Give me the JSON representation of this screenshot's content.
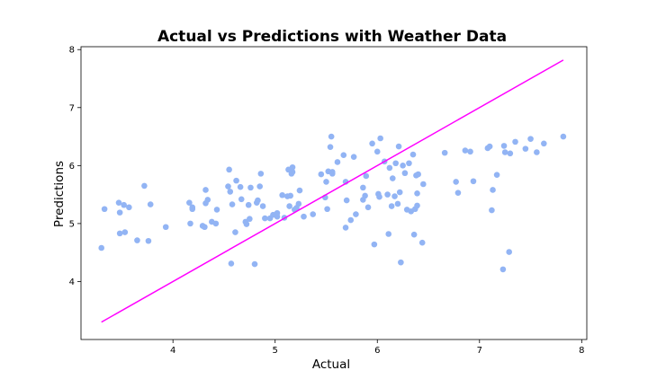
{
  "chart_data": {
    "type": "scatter",
    "title": "Actual vs Predictions with Weather Data",
    "xlabel": "Actual",
    "ylabel": "Predictions",
    "xlim": [
      3.1,
      8.05
    ],
    "ylim": [
      3.0,
      8.05
    ],
    "xticks": [
      4,
      5,
      6,
      7,
      8
    ],
    "yticks": [
      4,
      5,
      6,
      7,
      8
    ],
    "grid": false,
    "legend": "none",
    "colors": {
      "points": "#92b4f4",
      "reference_line": "#ff00ff"
    },
    "reference_line": {
      "x": [
        3.3,
        7.82
      ],
      "y": [
        3.3,
        7.82
      ]
    },
    "points": [
      [
        3.3,
        4.58
      ],
      [
        3.33,
        5.25
      ],
      [
        3.47,
        5.36
      ],
      [
        3.48,
        4.83
      ],
      [
        3.48,
        5.19
      ],
      [
        3.52,
        5.32
      ],
      [
        3.53,
        4.85
      ],
      [
        3.57,
        5.28
      ],
      [
        3.65,
        4.71
      ],
      [
        3.72,
        5.65
      ],
      [
        3.76,
        4.7
      ],
      [
        3.78,
        5.33
      ],
      [
        3.93,
        4.94
      ],
      [
        4.16,
        5.36
      ],
      [
        4.17,
        5.0
      ],
      [
        4.19,
        5.28
      ],
      [
        4.19,
        5.25
      ],
      [
        4.29,
        4.96
      ],
      [
        4.31,
        4.94
      ],
      [
        4.32,
        5.58
      ],
      [
        4.32,
        5.35
      ],
      [
        4.34,
        5.41
      ],
      [
        4.38,
        5.03
      ],
      [
        4.42,
        5.0
      ],
      [
        4.43,
        5.24
      ],
      [
        4.54,
        5.64
      ],
      [
        4.55,
        5.93
      ],
      [
        4.56,
        5.55
      ],
      [
        4.57,
        4.31
      ],
      [
        4.58,
        5.33
      ],
      [
        4.61,
        4.85
      ],
      [
        4.62,
        5.74
      ],
      [
        4.66,
        5.63
      ],
      [
        4.67,
        5.42
      ],
      [
        4.71,
        5.03
      ],
      [
        4.72,
        4.99
      ],
      [
        4.74,
        5.32
      ],
      [
        4.76,
        5.62
      ],
      [
        4.75,
        5.08
      ],
      [
        4.8,
        4.3
      ],
      [
        4.82,
        5.36
      ],
      [
        4.83,
        5.4
      ],
      [
        4.85,
        5.64
      ],
      [
        4.86,
        5.86
      ],
      [
        4.88,
        5.3
      ],
      [
        4.9,
        5.09
      ],
      [
        4.95,
        5.09
      ],
      [
        4.98,
        5.15
      ],
      [
        5.02,
        5.12
      ],
      [
        5.02,
        5.18
      ],
      [
        5.07,
        5.49
      ],
      [
        5.09,
        5.1
      ],
      [
        5.12,
        5.47
      ],
      [
        5.13,
        5.93
      ],
      [
        5.14,
        5.3
      ],
      [
        5.15,
        5.48
      ],
      [
        5.16,
        5.86
      ],
      [
        5.17,
        5.97
      ],
      [
        5.17,
        5.89
      ],
      [
        5.19,
        5.24
      ],
      [
        5.21,
        5.27
      ],
      [
        5.23,
        5.34
      ],
      [
        5.24,
        5.57
      ],
      [
        5.28,
        5.12
      ],
      [
        5.37,
        5.16
      ],
      [
        5.45,
        5.85
      ],
      [
        5.49,
        5.45
      ],
      [
        5.5,
        5.72
      ],
      [
        5.51,
        5.25
      ],
      [
        5.52,
        5.9
      ],
      [
        5.54,
        6.32
      ],
      [
        5.55,
        6.5
      ],
      [
        5.56,
        5.86
      ],
      [
        5.56,
        5.89
      ],
      [
        5.61,
        6.06
      ],
      [
        5.67,
        6.18
      ],
      [
        5.69,
        5.72
      ],
      [
        5.69,
        4.93
      ],
      [
        5.7,
        5.4
      ],
      [
        5.74,
        5.06
      ],
      [
        5.77,
        6.15
      ],
      [
        5.79,
        5.16
      ],
      [
        5.86,
        5.41
      ],
      [
        5.86,
        5.62
      ],
      [
        5.88,
        5.48
      ],
      [
        5.89,
        5.82
      ],
      [
        5.91,
        5.28
      ],
      [
        5.95,
        6.38
      ],
      [
        5.97,
        4.64
      ],
      [
        6.0,
        6.24
      ],
      [
        6.01,
        5.51
      ],
      [
        6.02,
        5.46
      ],
      [
        6.03,
        6.47
      ],
      [
        6.07,
        6.07
      ],
      [
        6.1,
        5.5
      ],
      [
        6.11,
        4.82
      ],
      [
        6.12,
        5.96
      ],
      [
        6.14,
        5.3
      ],
      [
        6.15,
        5.78
      ],
      [
        6.17,
        5.47
      ],
      [
        6.18,
        6.04
      ],
      [
        6.2,
        5.34
      ],
      [
        6.21,
        6.33
      ],
      [
        6.22,
        5.54
      ],
      [
        6.23,
        4.33
      ],
      [
        6.25,
        6.0
      ],
      [
        6.27,
        5.87
      ],
      [
        6.29,
        5.24
      ],
      [
        6.31,
        6.04
      ],
      [
        6.33,
        5.21
      ],
      [
        6.35,
        6.19
      ],
      [
        6.36,
        4.81
      ],
      [
        6.37,
        5.25
      ],
      [
        6.38,
        5.83
      ],
      [
        6.39,
        5.52
      ],
      [
        6.39,
        5.31
      ],
      [
        6.4,
        5.85
      ],
      [
        6.44,
        4.67
      ],
      [
        6.45,
        5.68
      ],
      [
        6.66,
        6.22
      ],
      [
        6.77,
        5.72
      ],
      [
        6.79,
        5.53
      ],
      [
        6.86,
        6.26
      ],
      [
        6.91,
        6.24
      ],
      [
        6.94,
        5.73
      ],
      [
        7.08,
        6.3
      ],
      [
        7.1,
        6.33
      ],
      [
        7.12,
        5.23
      ],
      [
        7.13,
        5.58
      ],
      [
        7.17,
        5.84
      ],
      [
        7.23,
        4.21
      ],
      [
        7.24,
        6.34
      ],
      [
        7.25,
        6.23
      ],
      [
        7.29,
        4.51
      ],
      [
        7.3,
        6.21
      ],
      [
        7.35,
        6.41
      ],
      [
        7.45,
        6.29
      ],
      [
        7.5,
        6.46
      ],
      [
        7.56,
        6.23
      ],
      [
        7.63,
        6.38
      ],
      [
        7.82,
        6.5
      ]
    ]
  }
}
